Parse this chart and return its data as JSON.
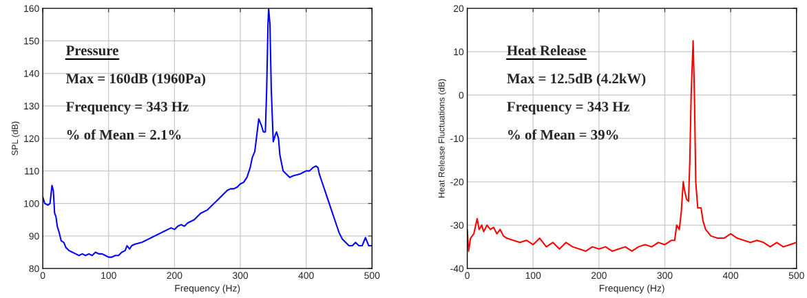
{
  "chart_data": [
    {
      "type": "line",
      "xlabel": "Frequency (Hz)",
      "ylabel": "SPL (dB)",
      "annotations": [
        "Pressure",
        "Max = 160dB (1960Pa)",
        "Frequency = 343 Hz",
        "% of Mean = 2.1%"
      ],
      "xlim": [
        0,
        500
      ],
      "ylim": [
        80,
        160
      ],
      "xticks": [
        0,
        100,
        200,
        300,
        400,
        500
      ],
      "yticks": [
        80,
        90,
        100,
        110,
        120,
        130,
        140,
        150,
        160
      ],
      "grid": true,
      "legend": false,
      "marker": "none",
      "line_style": "solid",
      "series": [
        {
          "color": "#0000ff",
          "x": [
            0,
            3,
            8,
            11,
            14,
            16,
            18,
            20,
            22,
            25,
            28,
            32,
            35,
            40,
            45,
            50,
            55,
            60,
            65,
            70,
            75,
            80,
            85,
            90,
            95,
            100,
            105,
            110,
            115,
            120,
            125,
            128,
            132,
            135,
            140,
            150,
            155,
            160,
            165,
            170,
            175,
            180,
            185,
            190,
            195,
            200,
            205,
            210,
            215,
            220,
            230,
            240,
            250,
            260,
            265,
            270,
            275,
            280,
            285,
            290,
            295,
            300,
            305,
            310,
            315,
            318,
            322,
            325,
            328,
            332,
            335,
            338,
            340,
            342,
            343,
            345,
            347,
            350,
            353,
            355,
            358,
            360,
            363,
            365,
            370,
            375,
            380,
            390,
            395,
            400,
            405,
            410,
            415,
            418,
            420,
            425,
            430,
            435,
            440,
            445,
            450,
            455,
            460,
            465,
            470,
            475,
            480,
            485,
            490,
            493,
            495,
            500
          ],
          "values": [
            102,
            100,
            99.5,
            100,
            105.5,
            104,
            97,
            96,
            93,
            91,
            88.5,
            88,
            86.5,
            85.5,
            85,
            84.5,
            84,
            84.5,
            84,
            84.5,
            84,
            85,
            84.5,
            84.5,
            84,
            83.5,
            83.5,
            84,
            84,
            85,
            85.5,
            87,
            86,
            87,
            87.5,
            88,
            88.5,
            89,
            89.5,
            90,
            90.5,
            91,
            91.5,
            92,
            92.5,
            92,
            93,
            93.5,
            93,
            94,
            95,
            97,
            98,
            100,
            101,
            102,
            103,
            104,
            104.5,
            104.5,
            105,
            106,
            106.5,
            108,
            111,
            114,
            116,
            121,
            126,
            124,
            122,
            122,
            135,
            155,
            160,
            155,
            135,
            119,
            121,
            122,
            120,
            115,
            112,
            110,
            109,
            108,
            108.5,
            109,
            109.5,
            110,
            110,
            111,
            111.5,
            111,
            109,
            106,
            103,
            100,
            97,
            94,
            91,
            89,
            88,
            87,
            87,
            88,
            87,
            87,
            89.5,
            88,
            87,
            87
          ]
        }
      ]
    },
    {
      "type": "line",
      "xlabel": "Frequency (Hz)",
      "ylabel": "Heat Release Fluctuations (dB)",
      "annotations": [
        "Heat Release",
        "Max = 12.5dB (4.2kW)",
        "Frequency = 343 Hz",
        "% of Mean = 39%"
      ],
      "xlim": [
        0,
        500
      ],
      "ylim": [
        -40,
        20
      ],
      "xticks": [
        0,
        100,
        200,
        300,
        400,
        500
      ],
      "yticks": [
        -40,
        -30,
        -20,
        -10,
        0,
        10,
        20
      ],
      "grid": true,
      "legend": false,
      "marker": "none",
      "line_style": "solid",
      "series": [
        {
          "color": "#ff0000",
          "x": [
            0,
            2,
            5,
            10,
            15,
            18,
            22,
            25,
            30,
            35,
            40,
            45,
            50,
            55,
            60,
            70,
            80,
            90,
            100,
            110,
            120,
            130,
            140,
            150,
            160,
            170,
            180,
            190,
            200,
            210,
            220,
            230,
            240,
            250,
            260,
            270,
            280,
            290,
            300,
            305,
            310,
            315,
            318,
            322,
            325,
            328,
            330,
            333,
            336,
            338,
            340,
            343,
            345,
            347,
            350,
            355,
            358,
            362,
            370,
            380,
            390,
            400,
            410,
            420,
            430,
            440,
            450,
            460,
            470,
            480,
            490,
            500
          ],
          "values": [
            -31,
            -36,
            -33,
            -32,
            -28.5,
            -31,
            -30,
            -31.5,
            -30,
            -31,
            -30.5,
            -32,
            -31,
            -32.5,
            -33,
            -33.5,
            -34,
            -33.5,
            -34.5,
            -33,
            -35,
            -34,
            -35.5,
            -34,
            -35,
            -35.5,
            -36,
            -35,
            -35.5,
            -35,
            -36,
            -35.5,
            -35,
            -36,
            -35,
            -34.5,
            -35,
            -34,
            -34.5,
            -34,
            -33.5,
            -33.5,
            -30,
            -31,
            -27,
            -20,
            -22,
            -24,
            -24.5,
            -15,
            0,
            12.5,
            0,
            -20,
            -26,
            -26,
            -29,
            -31,
            -32.5,
            -33,
            -33,
            -32,
            -33,
            -33.5,
            -34,
            -33.5,
            -34,
            -35,
            -34,
            -35,
            -34.5,
            -34
          ]
        }
      ]
    }
  ]
}
